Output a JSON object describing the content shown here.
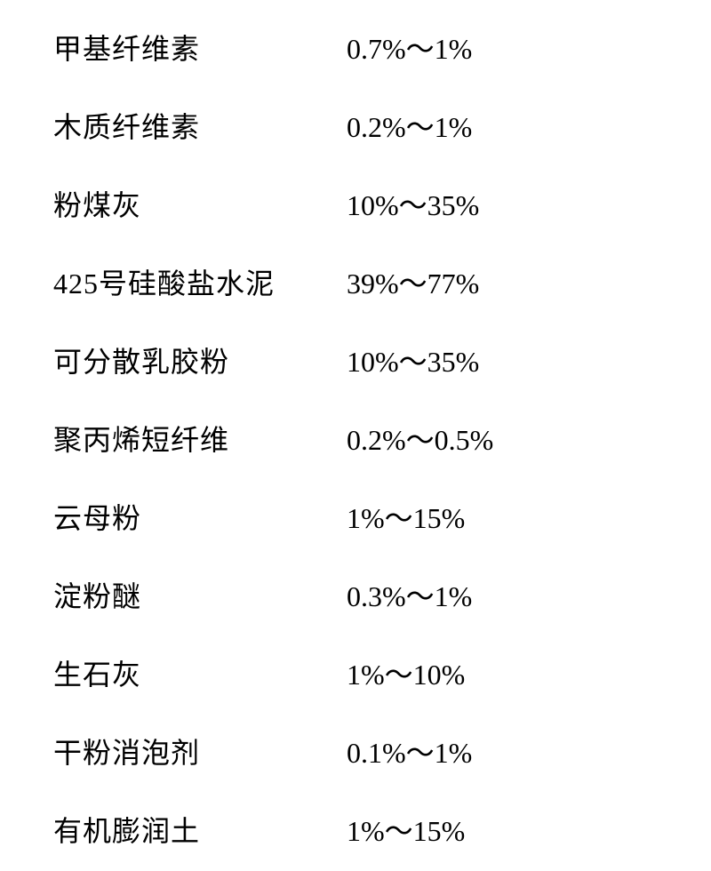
{
  "table": {
    "type": "table",
    "background_color": "#ffffff",
    "text_color": "#000000",
    "label_fontsize": 32,
    "value_fontsize": 32,
    "row_spacing": 42,
    "label_column_width": 330,
    "font_family": "SimSun, 宋体, serif",
    "rows": [
      {
        "label": "甲基纤维素",
        "value": "0.7%～1%"
      },
      {
        "label": "木质纤维素",
        "value": "0.2%～1%"
      },
      {
        "label": "粉煤灰",
        "value": "10%～35%"
      },
      {
        "label": "425号硅酸盐水泥",
        "value": "39%～77%"
      },
      {
        "label": "可分散乳胶粉",
        "value": "10%～35%"
      },
      {
        "label": "聚丙烯短纤维",
        "value": "0.2%～0.5%"
      },
      {
        "label": "云母粉",
        "value": "1%～15%"
      },
      {
        "label": "淀粉醚",
        "value": "0.3%～1%"
      },
      {
        "label": "生石灰",
        "value": "1%～10%"
      },
      {
        "label": "干粉消泡剂",
        "value": "0.1%～1%"
      },
      {
        "label": "有机膨润土",
        "value": "1%～15%"
      }
    ]
  }
}
